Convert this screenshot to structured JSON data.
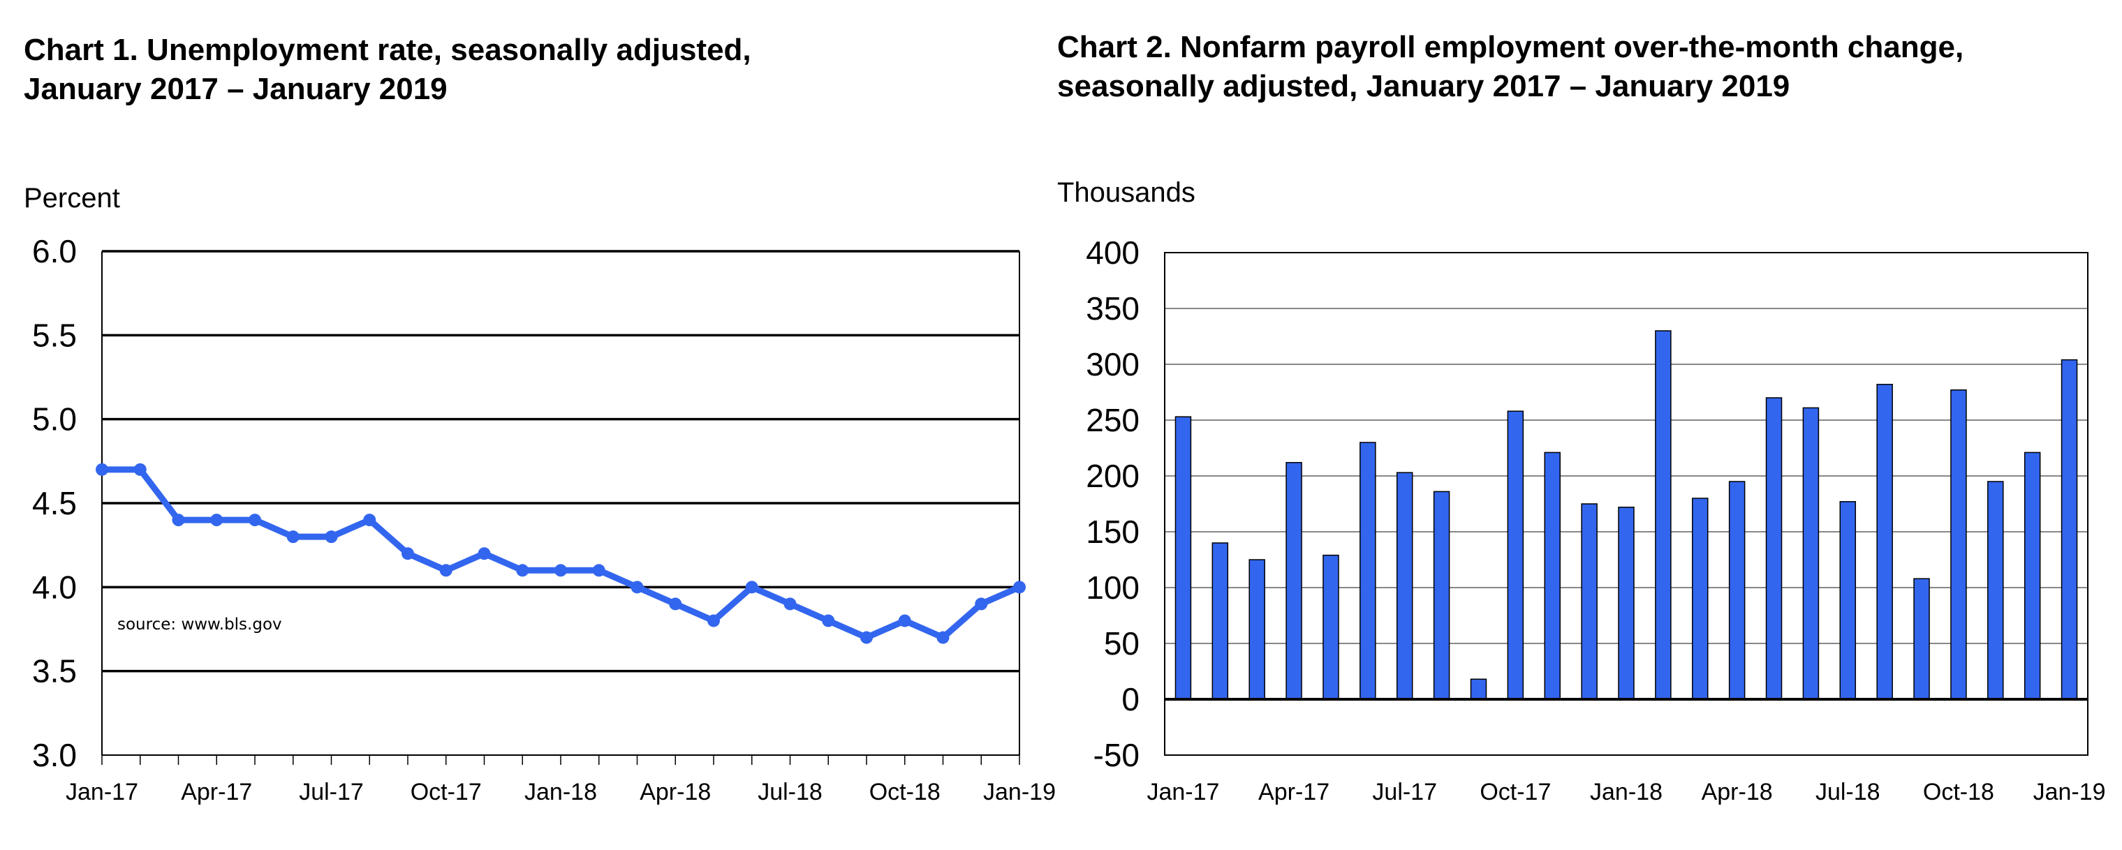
{
  "chart_data": [
    {
      "type": "line",
      "title_line1": "Chart 1. Unemployment rate, seasonally adjusted,",
      "title_line2": "January 2017 – January 2019",
      "ylabel": "Percent",
      "xlabel": "",
      "ylim": [
        3.0,
        6.0
      ],
      "yticks": [
        "6.0",
        "5.5",
        "5.0",
        "4.5",
        "4.0",
        "3.5",
        "3.0"
      ],
      "xtick_labels": [
        "Jan-17",
        "Apr-17",
        "Jul-17",
        "Oct-17",
        "Jan-18",
        "Apr-18",
        "Jul-18",
        "Oct-18",
        "Jan-19"
      ],
      "grid": true,
      "annotation": "source: www.bls.gov",
      "line_color": "#3366ee",
      "series": [
        {
          "values": [
            4.7,
            4.7,
            4.4,
            4.4,
            4.4,
            4.3,
            4.3,
            4.4,
            4.2,
            4.1,
            4.2,
            4.1,
            4.1,
            4.1,
            4.0,
            3.9,
            3.8,
            4.0,
            3.9,
            3.8,
            3.7,
            3.8,
            3.7,
            3.9,
            4.0
          ]
        }
      ]
    },
    {
      "type": "bar",
      "title_line1": "Chart 2. Nonfarm payroll employment over-the-month change,",
      "title_line2": "seasonally adjusted, January 2017 – January 2019",
      "ylabel": "Thousands",
      "xlabel": "",
      "ylim": [
        -50,
        400
      ],
      "yticks": [
        "400",
        "350",
        "300",
        "250",
        "200",
        "150",
        "100",
        "50",
        "0",
        "-50"
      ],
      "xtick_labels": [
        "Jan-17",
        "Apr-17",
        "Jul-17",
        "Oct-17",
        "Jan-18",
        "Apr-18",
        "Jul-18",
        "Oct-18",
        "Jan-19"
      ],
      "grid": true,
      "bar_color": "#3366ee",
      "series": [
        {
          "values": [
            253,
            140,
            125,
            212,
            129,
            230,
            203,
            186,
            18,
            258,
            221,
            175,
            172,
            330,
            180,
            195,
            270,
            261,
            177,
            282,
            108,
            277,
            195,
            221,
            304
          ]
        }
      ]
    }
  ]
}
